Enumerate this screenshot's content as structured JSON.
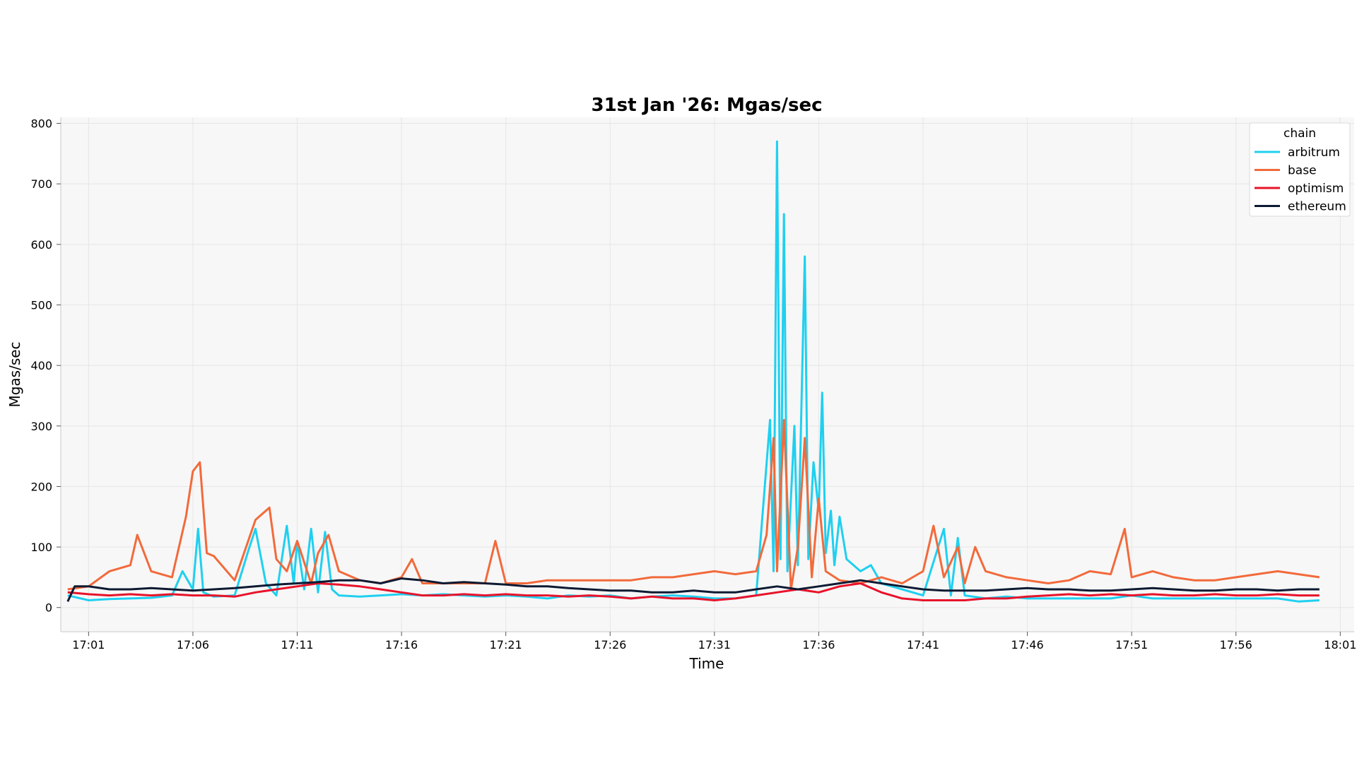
{
  "chart_data": {
    "type": "line",
    "title": "31st Jan '26: Mgas/sec",
    "xlabel": "Time",
    "ylabel": "Mgas/sec",
    "x_ticks": [
      "17:01",
      "17:06",
      "17:11",
      "17:16",
      "17:21",
      "17:26",
      "17:31",
      "17:36",
      "17:41",
      "17:46",
      "17:51",
      "17:56",
      "18:01"
    ],
    "xlim": [
      "17:00",
      "18:01"
    ],
    "ylim": [
      -40,
      800
    ],
    "y_ticks": [
      0,
      100,
      200,
      300,
      400,
      500,
      600,
      700,
      800
    ],
    "grid": true,
    "legend": {
      "title": "chain",
      "placement": "top-right"
    },
    "series": [
      {
        "name": "arbitrum",
        "color": "#1fd0f0",
        "points": [
          [
            "17:00",
            20
          ],
          [
            "17:01",
            12
          ],
          [
            "17:02",
            14
          ],
          [
            "17:03",
            15
          ],
          [
            "17:04",
            16
          ],
          [
            "17:05",
            20
          ],
          [
            "17:05:30",
            60
          ],
          [
            "17:06",
            30
          ],
          [
            "17:06:15",
            130
          ],
          [
            "17:06:30",
            25
          ],
          [
            "17:07",
            18
          ],
          [
            "17:08",
            20
          ],
          [
            "17:08:40",
            95
          ],
          [
            "17:09",
            130
          ],
          [
            "17:09:30",
            40
          ],
          [
            "17:10",
            20
          ],
          [
            "17:10:30",
            135
          ],
          [
            "17:10:50",
            40
          ],
          [
            "17:11",
            110
          ],
          [
            "17:11:20",
            30
          ],
          [
            "17:11:40",
            130
          ],
          [
            "17:12",
            25
          ],
          [
            "17:12:20",
            125
          ],
          [
            "17:12:40",
            30
          ],
          [
            "17:13",
            20
          ],
          [
            "17:14",
            18
          ],
          [
            "17:15",
            20
          ],
          [
            "17:16",
            22
          ],
          [
            "17:17",
            20
          ],
          [
            "17:18",
            22
          ],
          [
            "17:19",
            20
          ],
          [
            "17:20",
            18
          ],
          [
            "17:21",
            20
          ],
          [
            "17:22",
            18
          ],
          [
            "17:23",
            15
          ],
          [
            "17:24",
            20
          ],
          [
            "17:25",
            18
          ],
          [
            "17:26",
            20
          ],
          [
            "17:27",
            15
          ],
          [
            "17:28",
            18
          ],
          [
            "17:29",
            20
          ],
          [
            "17:30",
            18
          ],
          [
            "17:31",
            15
          ],
          [
            "17:32",
            15
          ],
          [
            "17:33",
            20
          ],
          [
            "17:33:40",
            310
          ],
          [
            "17:33:50",
            60
          ],
          [
            "17:34",
            770
          ],
          [
            "17:34:10",
            80
          ],
          [
            "17:34:20",
            650
          ],
          [
            "17:34:30",
            60
          ],
          [
            "17:34:50",
            300
          ],
          [
            "17:35",
            70
          ],
          [
            "17:35:20",
            580
          ],
          [
            "17:35:30",
            80
          ],
          [
            "17:35:45",
            240
          ],
          [
            "17:36",
            160
          ],
          [
            "17:36:10",
            355
          ],
          [
            "17:36:20",
            90
          ],
          [
            "17:36:35",
            160
          ],
          [
            "17:36:45",
            70
          ],
          [
            "17:37",
            150
          ],
          [
            "17:37:20",
            80
          ],
          [
            "17:38",
            60
          ],
          [
            "17:38:30",
            70
          ],
          [
            "17:39",
            40
          ],
          [
            "17:40",
            30
          ],
          [
            "17:41",
            20
          ],
          [
            "17:42",
            130
          ],
          [
            "17:42:20",
            20
          ],
          [
            "17:42:40",
            115
          ],
          [
            "17:43",
            20
          ],
          [
            "17:44",
            15
          ],
          [
            "17:45",
            18
          ],
          [
            "17:46",
            15
          ],
          [
            "17:47",
            15
          ],
          [
            "17:48",
            15
          ],
          [
            "17:49",
            15
          ],
          [
            "17:50",
            15
          ],
          [
            "17:51",
            20
          ],
          [
            "17:52",
            15
          ],
          [
            "17:53",
            15
          ],
          [
            "17:54",
            15
          ],
          [
            "17:55",
            15
          ],
          [
            "17:56",
            15
          ],
          [
            "17:57",
            15
          ],
          [
            "17:58",
            15
          ],
          [
            "17:59",
            10
          ],
          [
            "18:00",
            12
          ]
        ]
      },
      {
        "name": "base",
        "color": "#f26a3b",
        "points": [
          [
            "17:00",
            30
          ],
          [
            "17:01",
            35
          ],
          [
            "17:02",
            60
          ],
          [
            "17:03",
            70
          ],
          [
            "17:03:20",
            120
          ],
          [
            "17:04",
            60
          ],
          [
            "17:05",
            50
          ],
          [
            "17:05:40",
            150
          ],
          [
            "17:06",
            225
          ],
          [
            "17:06:20",
            240
          ],
          [
            "17:06:40",
            90
          ],
          [
            "17:07",
            85
          ],
          [
            "17:08",
            45
          ],
          [
            "17:09",
            145
          ],
          [
            "17:09:40",
            165
          ],
          [
            "17:10",
            80
          ],
          [
            "17:10:30",
            60
          ],
          [
            "17:11",
            110
          ],
          [
            "17:11:40",
            40
          ],
          [
            "17:12",
            90
          ],
          [
            "17:12:30",
            120
          ],
          [
            "17:13",
            60
          ],
          [
            "17:14",
            45
          ],
          [
            "17:15",
            40
          ],
          [
            "17:16",
            50
          ],
          [
            "17:16:30",
            80
          ],
          [
            "17:17",
            40
          ],
          [
            "17:18",
            40
          ],
          [
            "17:19",
            40
          ],
          [
            "17:20",
            40
          ],
          [
            "17:20:30",
            110
          ],
          [
            "17:21",
            40
          ],
          [
            "17:22",
            40
          ],
          [
            "17:23",
            45
          ],
          [
            "17:24",
            45
          ],
          [
            "17:25",
            45
          ],
          [
            "17:26",
            45
          ],
          [
            "17:27",
            45
          ],
          [
            "17:28",
            50
          ],
          [
            "17:29",
            50
          ],
          [
            "17:30",
            55
          ],
          [
            "17:31",
            60
          ],
          [
            "17:32",
            55
          ],
          [
            "17:33",
            60
          ],
          [
            "17:33:30",
            120
          ],
          [
            "17:33:50",
            280
          ],
          [
            "17:34",
            60
          ],
          [
            "17:34:20",
            310
          ],
          [
            "17:34:40",
            30
          ],
          [
            "17:35",
            100
          ],
          [
            "17:35:20",
            280
          ],
          [
            "17:35:40",
            50
          ],
          [
            "17:36",
            180
          ],
          [
            "17:36:20",
            60
          ],
          [
            "17:37",
            45
          ],
          [
            "17:38",
            40
          ],
          [
            "17:39",
            50
          ],
          [
            "17:40",
            40
          ],
          [
            "17:41",
            60
          ],
          [
            "17:41:30",
            135
          ],
          [
            "17:42",
            50
          ],
          [
            "17:42:40",
            100
          ],
          [
            "17:43",
            40
          ],
          [
            "17:43:30",
            100
          ],
          [
            "17:44",
            60
          ],
          [
            "17:45",
            50
          ],
          [
            "17:46",
            45
          ],
          [
            "17:47",
            40
          ],
          [
            "17:48",
            45
          ],
          [
            "17:49",
            60
          ],
          [
            "17:50",
            55
          ],
          [
            "17:50:40",
            130
          ],
          [
            "17:51",
            50
          ],
          [
            "17:52",
            60
          ],
          [
            "17:53",
            50
          ],
          [
            "17:54",
            45
          ],
          [
            "17:55",
            45
          ],
          [
            "17:56",
            50
          ],
          [
            "17:57",
            55
          ],
          [
            "17:58",
            60
          ],
          [
            "17:59",
            55
          ],
          [
            "18:00",
            50
          ]
        ]
      },
      {
        "name": "optimism",
        "color": "#e8132a",
        "points": [
          [
            "17:00",
            25
          ],
          [
            "17:01",
            22
          ],
          [
            "17:02",
            20
          ],
          [
            "17:03",
            22
          ],
          [
            "17:04",
            20
          ],
          [
            "17:05",
            22
          ],
          [
            "17:06",
            20
          ],
          [
            "17:07",
            20
          ],
          [
            "17:08",
            18
          ],
          [
            "17:09",
            25
          ],
          [
            "17:10",
            30
          ],
          [
            "17:11",
            35
          ],
          [
            "17:12",
            40
          ],
          [
            "17:13",
            38
          ],
          [
            "17:14",
            35
          ],
          [
            "17:15",
            30
          ],
          [
            "17:16",
            25
          ],
          [
            "17:17",
            20
          ],
          [
            "17:18",
            20
          ],
          [
            "17:19",
            22
          ],
          [
            "17:20",
            20
          ],
          [
            "17:21",
            22
          ],
          [
            "17:22",
            20
          ],
          [
            "17:23",
            20
          ],
          [
            "17:24",
            18
          ],
          [
            "17:25",
            20
          ],
          [
            "17:26",
            18
          ],
          [
            "17:27",
            15
          ],
          [
            "17:28",
            18
          ],
          [
            "17:29",
            15
          ],
          [
            "17:30",
            15
          ],
          [
            "17:31",
            12
          ],
          [
            "17:32",
            15
          ],
          [
            "17:33",
            20
          ],
          [
            "17:34",
            25
          ],
          [
            "17:35",
            30
          ],
          [
            "17:36",
            25
          ],
          [
            "17:37",
            35
          ],
          [
            "17:38",
            40
          ],
          [
            "17:39",
            25
          ],
          [
            "17:40",
            15
          ],
          [
            "17:41",
            12
          ],
          [
            "17:42",
            12
          ],
          [
            "17:43",
            12
          ],
          [
            "17:44",
            15
          ],
          [
            "17:45",
            15
          ],
          [
            "17:46",
            18
          ],
          [
            "17:47",
            20
          ],
          [
            "17:48",
            22
          ],
          [
            "17:49",
            20
          ],
          [
            "17:50",
            22
          ],
          [
            "17:51",
            20
          ],
          [
            "17:52",
            22
          ],
          [
            "17:53",
            20
          ],
          [
            "17:54",
            20
          ],
          [
            "17:55",
            22
          ],
          [
            "17:56",
            20
          ],
          [
            "17:57",
            20
          ],
          [
            "17:58",
            22
          ],
          [
            "17:59",
            20
          ],
          [
            "18:00",
            20
          ]
        ]
      },
      {
        "name": "ethereum",
        "color": "#0d1a33",
        "points": [
          [
            "17:00",
            10
          ],
          [
            "17:00:20",
            35
          ],
          [
            "17:01",
            35
          ],
          [
            "17:02",
            30
          ],
          [
            "17:03",
            30
          ],
          [
            "17:04",
            32
          ],
          [
            "17:05",
            30
          ],
          [
            "17:06",
            28
          ],
          [
            "17:07",
            30
          ],
          [
            "17:08",
            32
          ],
          [
            "17:09",
            35
          ],
          [
            "17:10",
            38
          ],
          [
            "17:11",
            40
          ],
          [
            "17:12",
            42
          ],
          [
            "17:13",
            45
          ],
          [
            "17:14",
            45
          ],
          [
            "17:15",
            40
          ],
          [
            "17:16",
            48
          ],
          [
            "17:17",
            45
          ],
          [
            "17:18",
            40
          ],
          [
            "17:19",
            42
          ],
          [
            "17:20",
            40
          ],
          [
            "17:21",
            38
          ],
          [
            "17:22",
            35
          ],
          [
            "17:23",
            35
          ],
          [
            "17:24",
            32
          ],
          [
            "17:25",
            30
          ],
          [
            "17:26",
            28
          ],
          [
            "17:27",
            28
          ],
          [
            "17:28",
            25
          ],
          [
            "17:29",
            25
          ],
          [
            "17:30",
            28
          ],
          [
            "17:31",
            25
          ],
          [
            "17:32",
            25
          ],
          [
            "17:33",
            30
          ],
          [
            "17:34",
            35
          ],
          [
            "17:35",
            30
          ],
          [
            "17:36",
            35
          ],
          [
            "17:37",
            40
          ],
          [
            "17:38",
            45
          ],
          [
            "17:39",
            40
          ],
          [
            "17:40",
            35
          ],
          [
            "17:41",
            30
          ],
          [
            "17:42",
            28
          ],
          [
            "17:43",
            28
          ],
          [
            "17:44",
            28
          ],
          [
            "17:45",
            30
          ],
          [
            "17:46",
            32
          ],
          [
            "17:47",
            30
          ],
          [
            "17:48",
            30
          ],
          [
            "17:49",
            28
          ],
          [
            "17:50",
            28
          ],
          [
            "17:51",
            30
          ],
          [
            "17:52",
            32
          ],
          [
            "17:53",
            30
          ],
          [
            "17:54",
            28
          ],
          [
            "17:55",
            28
          ],
          [
            "17:56",
            30
          ],
          [
            "17:57",
            30
          ],
          [
            "17:58",
            28
          ],
          [
            "17:59",
            30
          ],
          [
            "18:00",
            30
          ]
        ]
      }
    ]
  }
}
